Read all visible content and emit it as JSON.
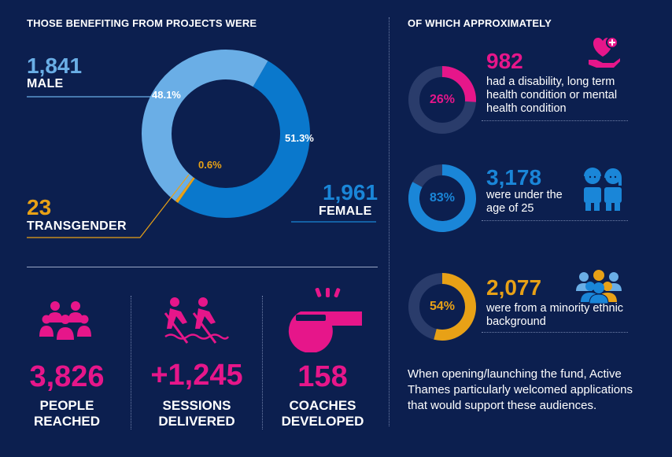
{
  "left": {
    "heading": "THOSE BENEFITING FROM PROJECTS WERE",
    "male": {
      "value": "1,841",
      "label": "MALE",
      "pct_label": "48.1%"
    },
    "female": {
      "value": "1,961",
      "label": "FEMALE",
      "pct_label": "51.3%"
    },
    "transgender": {
      "value": "23",
      "label": "TRANSGENDER",
      "pct_label": "0.6%"
    }
  },
  "chart_data": {
    "type": "pie",
    "title": "THOSE BENEFITING FROM PROJECTS WERE",
    "categories": [
      "Male",
      "Female",
      "Transgender"
    ],
    "values": [
      48.1,
      51.3,
      0.6
    ],
    "counts": [
      1841,
      1961,
      23
    ],
    "colors": [
      "#6aaee6",
      "#0a78cc",
      "#e8a116"
    ]
  },
  "right": {
    "heading": "OF WHICH APPROXIMATELY",
    "stats": [
      {
        "pct": 26,
        "pct_label": "26%",
        "value": "982",
        "desc": "had a disability, long term health condition or mental health condition",
        "color": "#e6168a",
        "icon": "heart-hand-icon"
      },
      {
        "pct": 83,
        "pct_label": "83%",
        "value": "3,178",
        "desc": "were under the age of 25",
        "color": "#1a86d8",
        "icon": "young-people-icon"
      },
      {
        "pct": 54,
        "pct_label": "54%",
        "value": "2,077",
        "desc": "were from a minority ethnic background",
        "color": "#e8a116",
        "icon": "group-icon"
      }
    ],
    "paragraph": "When opening/launching the fund, Active Thames particularly welcomed applications that would support these audiences."
  },
  "bottom": {
    "people": {
      "value": "3,826",
      "label1": "PEOPLE",
      "label2": "REACHED",
      "icon": "people-icon"
    },
    "sessions": {
      "value": "+1,245",
      "label1": "SESSIONS",
      "label2": "DELIVERED",
      "icon": "rowers-icon"
    },
    "coaches": {
      "value": "158",
      "label1": "COACHES",
      "label2": "DEVELOPED",
      "icon": "whistle-icon"
    }
  },
  "colors": {
    "background": "#0c1f4f",
    "magenta": "#e6168a",
    "blue": "#1a86d8",
    "light_blue": "#6aaee6",
    "gold": "#e8a116",
    "ring_track": "#2a3c6b"
  }
}
